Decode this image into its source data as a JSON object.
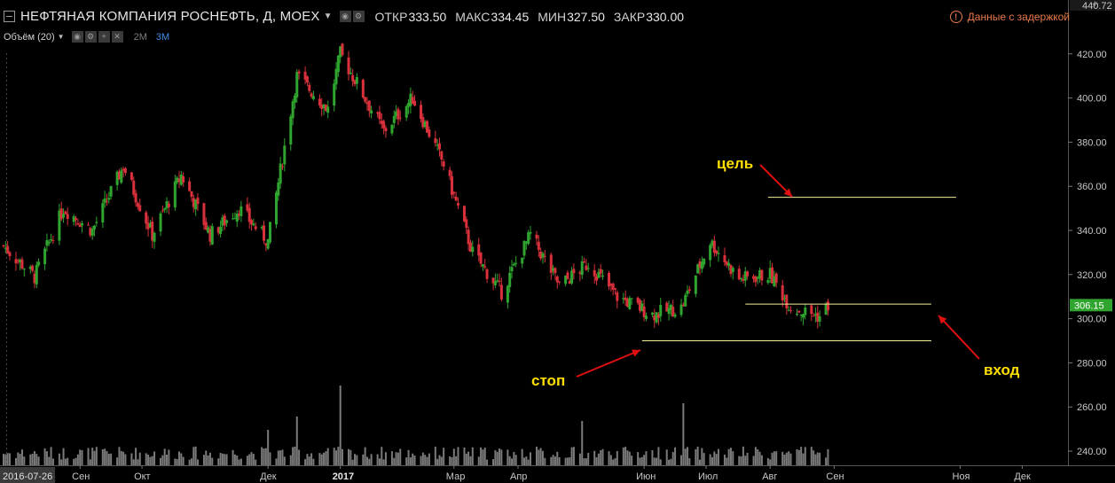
{
  "header": {
    "title": "НЕФТЯНАЯ КОМПАНИЯ РОСНЕФТЬ, Д, MOEX",
    "ohlc": [
      {
        "key": "ОТКР",
        "value": "333.50"
      },
      {
        "key": "МАКС",
        "value": "334.45"
      },
      {
        "key": "МИН",
        "value": "327.50"
      },
      {
        "key": "ЗАКР",
        "value": "330.00"
      }
    ],
    "delay_text": "Данные с задержкой"
  },
  "volume_row": {
    "label": "Объём (20)",
    "timeframes": [
      "2M",
      "3M"
    ],
    "active_timeframe": "3M"
  },
  "colors": {
    "up": "#2fa52f",
    "down": "#d8313b",
    "volume": "#7a7a7a",
    "annotation": "#ffe000",
    "arrow": "#e01010",
    "level_line": "#f5ef9a"
  },
  "annotations": {
    "target": "цель",
    "stop": "стоп",
    "entry": "вход"
  },
  "chart_data": {
    "type": "candlestick",
    "ylim": [
      236,
      442
    ],
    "y_ticks": [
      240,
      260,
      280,
      300,
      320,
      340,
      360,
      380,
      400,
      420
    ],
    "y_tick_labels": [
      "240.00",
      "260.00",
      "280.00",
      "300.00",
      "320.00",
      "340.00",
      "360.00",
      "380.00",
      "400.00",
      "420.00"
    ],
    "top_value_label": "440.72",
    "last_price": 306.15,
    "last_price_label": "306.15",
    "x_start_label": "2016-07-26",
    "x_months": [
      "Сен",
      "Окт",
      "Дек",
      "2017",
      "Мар",
      "Апр",
      "Июн",
      "Июл",
      "Авг",
      "Сен",
      "Ноя",
      "Дек"
    ],
    "price_path": [
      {
        "d": "2016-07-26",
        "p": 333
      },
      {
        "d": "2016-08-10",
        "p": 319
      },
      {
        "d": "2016-08-24",
        "p": 350
      },
      {
        "d": "2016-09-07",
        "p": 340
      },
      {
        "d": "2016-09-22",
        "p": 369
      },
      {
        "d": "2016-10-06",
        "p": 338
      },
      {
        "d": "2016-10-20",
        "p": 365
      },
      {
        "d": "2016-11-03",
        "p": 338
      },
      {
        "d": "2016-11-17",
        "p": 350
      },
      {
        "d": "2016-12-01",
        "p": 335
      },
      {
        "d": "2016-12-15",
        "p": 410
      },
      {
        "d": "2016-12-30",
        "p": 395
      },
      {
        "d": "2017-01-05",
        "p": 420
      },
      {
        "d": "2017-01-26",
        "p": 385
      },
      {
        "d": "2017-02-09",
        "p": 400
      },
      {
        "d": "2017-02-24",
        "p": 370
      },
      {
        "d": "2017-03-10",
        "p": 330
      },
      {
        "d": "2017-03-24",
        "p": 312
      },
      {
        "d": "2017-04-07",
        "p": 338
      },
      {
        "d": "2017-04-21",
        "p": 315
      },
      {
        "d": "2017-05-05",
        "p": 325
      },
      {
        "d": "2017-05-19",
        "p": 310
      },
      {
        "d": "2017-06-05",
        "p": 302
      },
      {
        "d": "2017-06-19",
        "p": 305
      },
      {
        "d": "2017-07-03",
        "p": 335
      },
      {
        "d": "2017-07-17",
        "p": 318
      },
      {
        "d": "2017-08-01",
        "p": 320
      },
      {
        "d": "2017-08-11",
        "p": 305
      },
      {
        "d": "2017-08-25",
        "p": 301
      },
      {
        "d": "2017-08-29",
        "p": 306
      }
    ],
    "levels": [
      {
        "name": "target",
        "value": 355,
        "from": "2017-07-31",
        "to": "2017-10-30"
      },
      {
        "name": "entry",
        "value": 306.6,
        "from": "2017-07-20",
        "to": "2017-10-18"
      },
      {
        "name": "stop",
        "value": 290,
        "from": "2017-05-31",
        "to": "2017-10-18"
      }
    ]
  }
}
